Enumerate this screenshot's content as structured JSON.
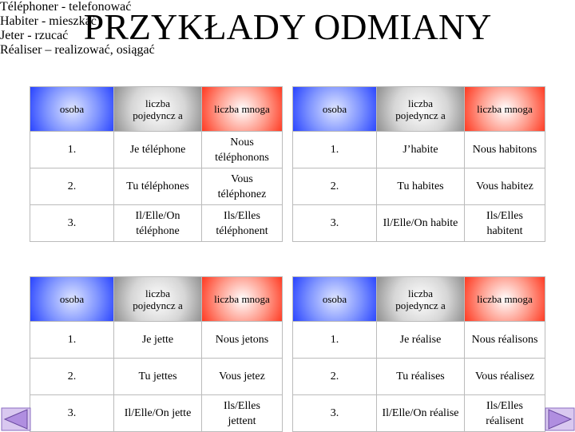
{
  "title": "PRZYKŁADY ODMIANY",
  "sections": [
    {
      "heading": "Téléphoner - telefonować",
      "table": {
        "header": [
          "osoba",
          "liczba pojedyncz a",
          "liczba mnoga"
        ],
        "rows": [
          [
            "1.",
            "Je téléphone",
            "Nous téléphonons"
          ],
          [
            "2.",
            "Tu téléphones",
            "Vous téléphonez"
          ],
          [
            "3.",
            "Il/Elle/On téléphone",
            "Ils/Elles téléphonent"
          ]
        ]
      }
    },
    {
      "heading": "Habiter - mieszkać",
      "table": {
        "header": [
          "osoba",
          "liczba pojedyncz a",
          "liczba mnoga"
        ],
        "rows": [
          [
            "1.",
            "J’habite",
            "Nous habitons"
          ],
          [
            "2.",
            "Tu habites",
            "Vous habitez"
          ],
          [
            "3.",
            "Il/Elle/On habite",
            "Ils/Elles habitent"
          ]
        ]
      }
    },
    {
      "heading": "Jeter - rzucać",
      "table": {
        "header": [
          "osoba",
          "liczba pojedyncz a",
          "liczba mnoga"
        ],
        "rows": [
          [
            "1.",
            "Je jette",
            "Nous jetons"
          ],
          [
            "2.",
            "Tu jettes",
            "Vous jetez"
          ],
          [
            "3.",
            "Il/Elle/On jette",
            "Ils/Elles jettent"
          ]
        ]
      }
    },
    {
      "heading": "Réaliser – realizować, osiągać",
      "table": {
        "header": [
          "osoba",
          "liczba pojedyncz a",
          "liczba mnoga"
        ],
        "rows": [
          [
            "1.",
            "Je réalise",
            "Nous réalisons"
          ],
          [
            "2.",
            "Tu réalises",
            "Vous réalisez"
          ],
          [
            "3.",
            "Il/Elle/On réalise",
            "Ils/Elles réalisent"
          ]
        ]
      }
    }
  ]
}
